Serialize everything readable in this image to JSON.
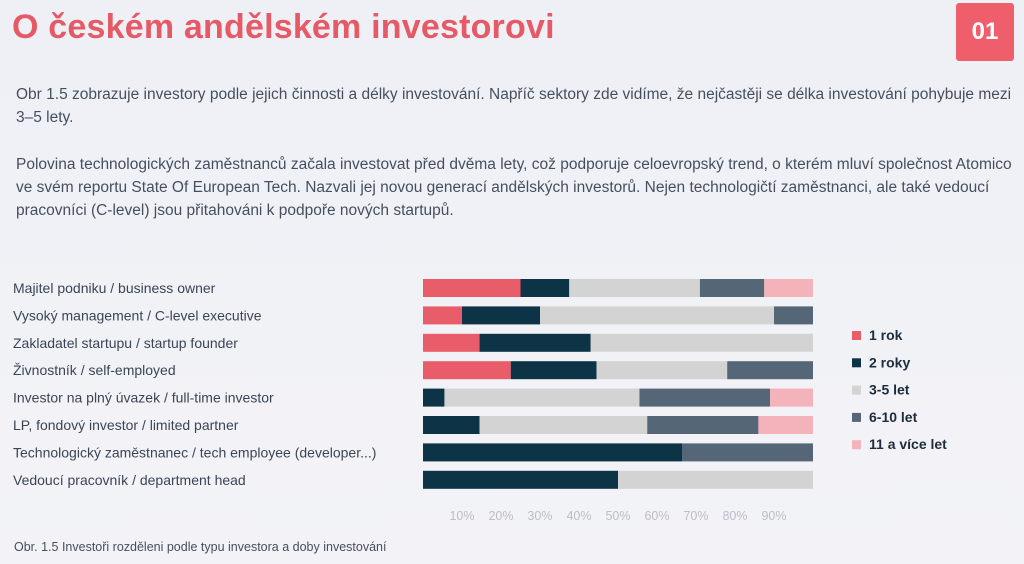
{
  "header": {
    "title": "O českém andělském investorovi",
    "page_number": "01"
  },
  "paragraphs": [
    "Obr 1.5 zobrazuje investory podle jejich činnosti a délky investování. Napříč sektory zde vidíme, že nejčastěji se délka investování pohybuje mezi 3–5 lety.",
    "Polovina technologických zaměstnanců začala investovat před dvěma lety, což podporuje celoevropský trend, o kterém mluví společnost Atomico ve svém reportu State Of European Tech. Nazvali jej novou generací andělských investorů. Nejen technologičtí zaměstnanci, ale také vedoucí pracovníci (C-level) jsou přitahováni k podpoře nových startupů."
  ],
  "caption": "Obr. 1.5 Investoři rozděleni podle typu investora a doby investování",
  "colors": {
    "1 rok": "#e85d69",
    "2 roky": "#0d3446",
    "3-5 let": "#d3d3d3",
    "6-10 let": "#556677",
    "11 a více let": "#f4b2ba"
  },
  "chart_data": {
    "type": "bar",
    "orientation": "horizontal",
    "stacked": true,
    "categories": [
      "Majitel podniku / business owner",
      "Vysoký management / C-level executive",
      "Zakladatel startupu / startup founder",
      "Živnostník / self-employed",
      "Investor na plný úvazek / full-time investor",
      "LP, fondový investor / limited partner",
      "Technologický zaměstnanec / tech employee (developer...)",
      "Vedoucí pracovník / department head"
    ],
    "series": [
      {
        "name": "1 rok",
        "values": [
          25,
          10,
          14.5,
          22.5,
          0,
          0,
          0,
          0
        ]
      },
      {
        "name": "2 roky",
        "values": [
          12.5,
          20,
          28.5,
          22,
          5.5,
          14.5,
          66.5,
          50
        ]
      },
      {
        "name": "3-5 let",
        "values": [
          33.5,
          60,
          57,
          33.5,
          50,
          43,
          0,
          50
        ]
      },
      {
        "name": "6-10 let",
        "values": [
          16.5,
          10,
          0,
          22,
          33.5,
          28.5,
          33.5,
          0
        ]
      },
      {
        "name": "11 a více let",
        "values": [
          12.5,
          0,
          0,
          0,
          11,
          14,
          0,
          0
        ]
      }
    ],
    "x_ticks": [
      "10%",
      "20%",
      "30%",
      "40%",
      "50%",
      "60%",
      "70%",
      "80%",
      "90%"
    ],
    "xlim": [
      0,
      100
    ],
    "legend_position": "right",
    "grid": false
  }
}
